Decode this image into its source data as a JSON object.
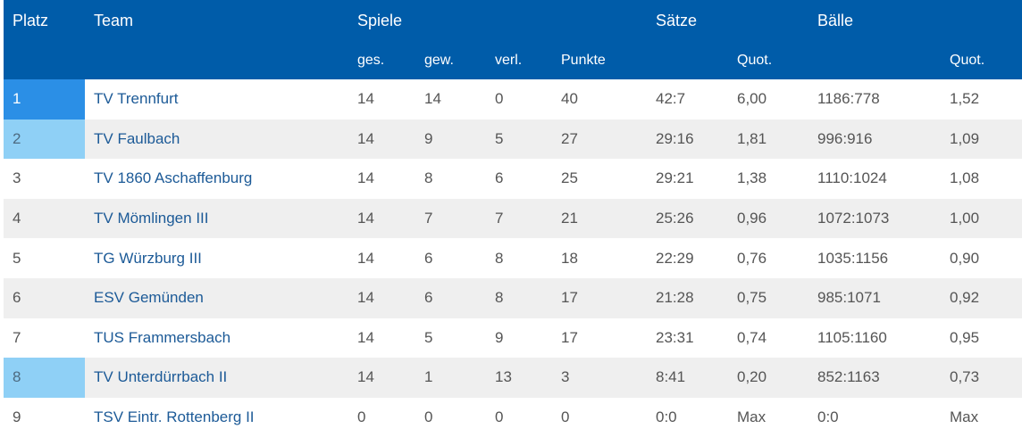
{
  "header": {
    "platz": "Platz",
    "team": "Team",
    "spiele": "Spiele",
    "saetze": "Sätze",
    "baelle": "Bälle",
    "ges": "ges.",
    "gew": "gew.",
    "verl": "verl.",
    "punkte": "Punkte",
    "quot_saetze": "Quot.",
    "quot_baelle": "Quot."
  },
  "rows": [
    {
      "platz": "1",
      "team": "TV Trennfurt",
      "ges": "14",
      "gew": "14",
      "verl": "0",
      "punkte": "40",
      "saetze": "42:7",
      "saetze_quot": "6,00",
      "baelle": "1186:778",
      "baelle_quot": "1,52"
    },
    {
      "platz": "2",
      "team": "TV Faulbach",
      "ges": "14",
      "gew": "9",
      "verl": "5",
      "punkte": "27",
      "saetze": "29:16",
      "saetze_quot": "1,81",
      "baelle": "996:916",
      "baelle_quot": "1,09"
    },
    {
      "platz": "3",
      "team": "TV 1860 Aschaffenburg",
      "ges": "14",
      "gew": "8",
      "verl": "6",
      "punkte": "25",
      "saetze": "29:21",
      "saetze_quot": "1,38",
      "baelle": "1110:1024",
      "baelle_quot": "1,08"
    },
    {
      "platz": "4",
      "team": "TV Mömlingen III",
      "ges": "14",
      "gew": "7",
      "verl": "7",
      "punkte": "21",
      "saetze": "25:26",
      "saetze_quot": "0,96",
      "baelle": "1072:1073",
      "baelle_quot": "1,00"
    },
    {
      "platz": "5",
      "team": "TG Würzburg III",
      "ges": "14",
      "gew": "6",
      "verl": "8",
      "punkte": "18",
      "saetze": "22:29",
      "saetze_quot": "0,76",
      "baelle": "1035:1156",
      "baelle_quot": "0,90"
    },
    {
      "platz": "6",
      "team": "ESV Gemünden",
      "ges": "14",
      "gew": "6",
      "verl": "8",
      "punkte": "17",
      "saetze": "21:28",
      "saetze_quot": "0,75",
      "baelle": "985:1071",
      "baelle_quot": "0,92"
    },
    {
      "platz": "7",
      "team": "TUS Frammersbach",
      "ges": "14",
      "gew": "5",
      "verl": "9",
      "punkte": "17",
      "saetze": "23:31",
      "saetze_quot": "0,74",
      "baelle": "1105:1160",
      "baelle_quot": "0,95"
    },
    {
      "platz": "8",
      "team": "TV Unterdürrbach II",
      "ges": "14",
      "gew": "1",
      "verl": "13",
      "punkte": "3",
      "saetze": "8:41",
      "saetze_quot": "0,20",
      "baelle": "852:1163",
      "baelle_quot": "0,73"
    },
    {
      "platz": "9",
      "team": "TSV Eintr. Rottenberg II",
      "ges": "0",
      "gew": "0",
      "verl": "0",
      "punkte": "0",
      "saetze": "0:0",
      "saetze_quot": "Max",
      "baelle": "0:0",
      "baelle_quot": "Max"
    }
  ],
  "colors": {
    "header_bg": "#005ca9",
    "first_place": "#2b8fe6",
    "promotion_relegation": "#8fd0f6",
    "team_link": "#1c5a97"
  }
}
